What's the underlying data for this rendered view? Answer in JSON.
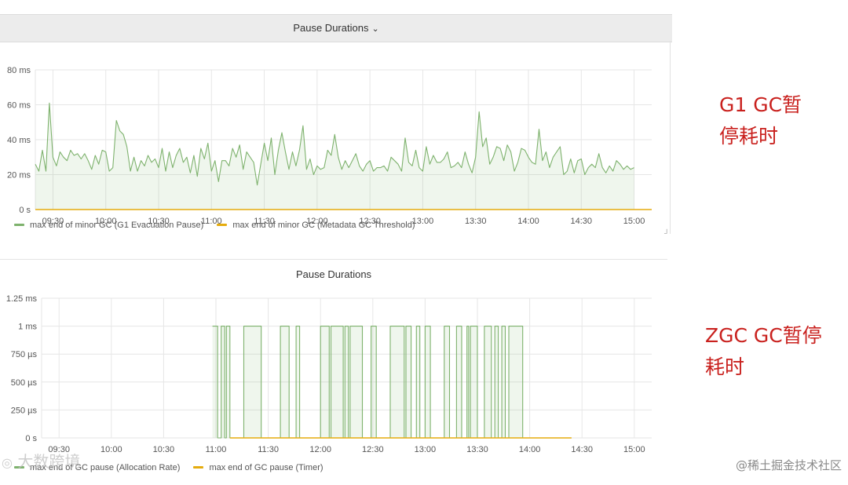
{
  "chart_data": [
    {
      "type": "line",
      "title": "Pause Durations",
      "y_unit": "ms",
      "ylim": [
        0,
        80
      ],
      "y_ticks": [
        "80 ms",
        "60 ms",
        "40 ms",
        "20 ms",
        "0 s"
      ],
      "x_ticks": [
        "09:30",
        "10:00",
        "10:30",
        "11:00",
        "11:30",
        "12:00",
        "12:30",
        "13:00",
        "13:30",
        "14:00",
        "14:30",
        "15:00"
      ],
      "xlim": [
        "09:20",
        "15:10"
      ],
      "grid": true,
      "legend_position": "bottom-left",
      "series": [
        {
          "name": "max end of minor GC (G1 Evacuation Pause)",
          "color": "#7eb26d",
          "step": 2,
          "start": "09:20",
          "values": [
            26,
            22,
            34,
            22,
            61,
            30,
            25,
            33,
            30,
            28,
            34,
            31,
            32,
            29,
            32,
            28,
            23,
            31,
            26,
            34,
            33,
            22,
            24,
            51,
            45,
            43,
            36,
            22,
            30,
            22,
            28,
            25,
            31,
            27,
            29,
            24,
            35,
            22,
            33,
            24,
            31,
            35,
            27,
            30,
            21,
            31,
            19,
            35,
            29,
            38,
            22,
            28,
            16,
            28,
            28,
            25,
            35,
            30,
            37,
            23,
            33,
            30,
            27,
            14,
            26,
            38,
            28,
            41,
            20,
            34,
            44,
            33,
            23,
            33,
            25,
            34,
            48,
            23,
            29,
            20,
            25,
            23,
            24,
            34,
            31,
            43,
            30,
            23,
            28,
            24,
            28,
            32,
            25,
            22,
            26,
            28,
            22,
            24,
            24,
            25,
            22,
            30,
            28,
            26,
            22,
            41,
            27,
            25,
            34,
            24,
            22,
            36,
            26,
            31,
            27,
            27,
            29,
            33,
            24,
            25,
            27,
            24,
            33,
            26,
            21,
            30,
            56,
            36,
            41,
            26,
            30,
            36,
            35,
            28,
            37,
            33,
            22,
            27,
            35,
            34,
            30,
            27,
            26,
            46,
            28,
            33,
            24,
            30,
            33,
            36,
            20,
            22,
            29,
            21,
            28,
            29,
            20,
            24,
            26,
            24,
            32,
            24,
            21,
            25,
            22,
            28,
            26,
            23,
            25,
            23,
            24
          ]
        },
        {
          "name": "max end of minor GC (Metadata GC Threshold)",
          "color": "#e5ac0e",
          "step": 2,
          "start": "09:20",
          "values": [
            0,
            0,
            0,
            0,
            0,
            0,
            0,
            0,
            0,
            0,
            0,
            0,
            0,
            0,
            0,
            0,
            0,
            0,
            0,
            0,
            0,
            0,
            0,
            0,
            0,
            0,
            0,
            0,
            0,
            0,
            0,
            0,
            0,
            0,
            0,
            0,
            0,
            0,
            0,
            0,
            0,
            0,
            0,
            0,
            0,
            0,
            0,
            0,
            0,
            0,
            0,
            0,
            0,
            0,
            0,
            0,
            0,
            0,
            0,
            0,
            0,
            0,
            0,
            0,
            0,
            0,
            0,
            0,
            0,
            0,
            0,
            0,
            0,
            0,
            0,
            0,
            0,
            0,
            0,
            0,
            0,
            0,
            0,
            0,
            0,
            0,
            0,
            0,
            0,
            0,
            0,
            0,
            0,
            0,
            0,
            0,
            0,
            0,
            0,
            0,
            0,
            0,
            0,
            0,
            0,
            0,
            0,
            0,
            0,
            0,
            0,
            0,
            0,
            0,
            0,
            0,
            0,
            0,
            0,
            0,
            0,
            0,
            0,
            0,
            0,
            0,
            0,
            0,
            0,
            0,
            0,
            0,
            0,
            0,
            0,
            0,
            0,
            0,
            0,
            0,
            0,
            0,
            0,
            0,
            0,
            0,
            0,
            0,
            0,
            0,
            0,
            0,
            0,
            0,
            0,
            0,
            0,
            0,
            0,
            0,
            0,
            0,
            0,
            0,
            0,
            0,
            0,
            0,
            0,
            0,
            0,
            0,
            0,
            0,
            0,
            0
          ]
        }
      ]
    },
    {
      "type": "line",
      "title": "Pause Durations",
      "y_unit": "ms",
      "ylim": [
        0,
        1.25
      ],
      "y_ticks": [
        "1.25 ms",
        "1 ms",
        "750 µs",
        "500 µs",
        "250 µs",
        "0 s"
      ],
      "x_ticks": [
        "09:30",
        "10:00",
        "10:30",
        "11:00",
        "11:30",
        "12:00",
        "12:30",
        "13:00",
        "13:30",
        "14:00",
        "14:30",
        "15:00"
      ],
      "xlim": [
        "09:20",
        "15:10"
      ],
      "grid": true,
      "legend_position": "bottom-left",
      "series": [
        {
          "name": "max end of GC pause (Allocation Rate)",
          "color": "#7eb26d",
          "start": "10:58",
          "segments": [
            [
              0,
              3,
              1
            ],
            [
              3,
              5,
              0
            ],
            [
              5,
              7,
              1
            ],
            [
              7,
              8,
              0
            ],
            [
              8,
              10,
              1
            ],
            [
              10,
              18,
              0
            ],
            [
              18,
              28,
              1
            ],
            [
              28,
              39,
              0
            ],
            [
              39,
              44,
              1
            ],
            [
              44,
              48,
              0
            ],
            [
              48,
              50,
              1
            ],
            [
              50,
              62,
              0
            ],
            [
              62,
              67,
              1
            ],
            [
              67,
              68,
              0
            ],
            [
              68,
              75,
              1
            ],
            [
              75,
              76,
              0
            ],
            [
              76,
              78,
              1
            ],
            [
              78,
              79,
              0
            ],
            [
              79,
              86,
              1
            ],
            [
              86,
              91,
              0
            ],
            [
              91,
              94,
              1
            ],
            [
              94,
              102,
              0
            ],
            [
              102,
              110,
              1
            ],
            [
              110,
              111,
              0
            ],
            [
              111,
              114,
              1
            ],
            [
              114,
              117,
              0
            ],
            [
              117,
              119,
              1
            ],
            [
              119,
              122,
              0
            ],
            [
              122,
              125,
              1
            ],
            [
              125,
              133,
              0
            ],
            [
              133,
              136,
              1
            ],
            [
              136,
              140,
              0
            ],
            [
              140,
              143,
              1
            ],
            [
              143,
              146,
              0
            ],
            [
              146,
              147,
              1
            ],
            [
              147,
              148,
              0
            ],
            [
              148,
              152,
              1
            ],
            [
              152,
              156,
              0
            ],
            [
              156,
              160,
              1
            ],
            [
              160,
              162,
              0
            ],
            [
              162,
              164,
              1
            ],
            [
              164,
              166,
              0
            ],
            [
              166,
              168,
              1
            ],
            [
              168,
              170,
              0
            ],
            [
              170,
              178,
              1
            ],
            [
              178,
              178.4,
              0
            ]
          ],
          "segment_units": "minutes since start"
        },
        {
          "name": "max end of GC pause (Timer)",
          "color": "#e5ac0e",
          "start": "11:08",
          "end": "14:24",
          "values": [
            0
          ]
        }
      ]
    }
  ],
  "annotations": {
    "g1_line1": "G1  GC暂",
    "g1_line2": "停耗时",
    "zgc_line1": "ZGC  GC暂停",
    "zgc_line2": "耗时"
  },
  "watermarks": {
    "left": "大数跨境",
    "right": "@稀土掘金技术社区"
  }
}
